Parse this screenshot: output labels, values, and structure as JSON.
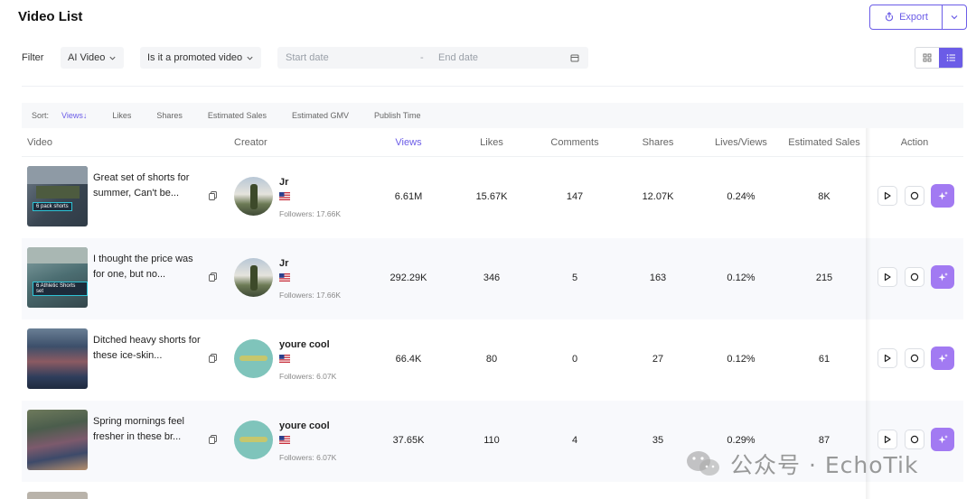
{
  "header": {
    "title": "Video List",
    "export_label": "Export"
  },
  "filters": {
    "label": "Filter",
    "ai_video": "AI Video",
    "promoted": "Is it a promoted video",
    "start_placeholder": "Start date",
    "separator": "-",
    "end_placeholder": "End date"
  },
  "sort": {
    "label": "Sort:",
    "items": [
      "Views",
      "Likes",
      "Shares",
      "Estimated Sales",
      "Estimated GMV",
      "Publish Time"
    ],
    "active_arrow": "↓"
  },
  "table": {
    "headers": {
      "video": "Video",
      "creator": "Creator",
      "views": "Views",
      "likes": "Likes",
      "comments": "Comments",
      "shares": "Shares",
      "lives_views": "Lives/Views",
      "estimated_sales": "Estimated Sales",
      "action": "Action"
    },
    "rows": [
      {
        "title": "Great set of shorts for summer, Can't be...",
        "thumb_tag": "6 pack shorts",
        "creator": "Jr",
        "followers": "Followers: 17.66K",
        "views": "6.61M",
        "likes": "15.67K",
        "comments": "147",
        "shares": "12.07K",
        "lives_views": "0.24%",
        "sales": "8K"
      },
      {
        "title": "I thought the price was for one, but no...",
        "thumb_tag": "6 Athletic Shorts set",
        "creator": "Jr",
        "followers": "Followers: 17.66K",
        "views": "292.29K",
        "likes": "346",
        "comments": "5",
        "shares": "163",
        "lives_views": "0.12%",
        "sales": "215"
      },
      {
        "title": "Ditched heavy shorts for these ice-skin...",
        "thumb_tag": "",
        "creator": "youre cool",
        "followers": "Followers: 6.07K",
        "views": "66.4K",
        "likes": "80",
        "comments": "0",
        "shares": "27",
        "lives_views": "0.12%",
        "sales": "61"
      },
      {
        "title": "Spring mornings feel fresher in these br...",
        "thumb_tag": "",
        "creator": "youre cool",
        "followers": "Followers: 6.07K",
        "views": "37.65K",
        "likes": "110",
        "comments": "4",
        "shares": "35",
        "lives_views": "0.29%",
        "sales": "87"
      }
    ]
  },
  "watermark": {
    "text": "公众号 · EchoTik"
  },
  "colors": {
    "accent": "#6b5ce7",
    "ai_button": "#a27af2"
  },
  "icons": [
    "export-icon",
    "chevron-down-icon",
    "calendar-icon",
    "grid-view-icon",
    "list-view-icon",
    "copy-icon",
    "flag-icon",
    "play-icon",
    "record-icon",
    "sparkle-icon"
  ]
}
